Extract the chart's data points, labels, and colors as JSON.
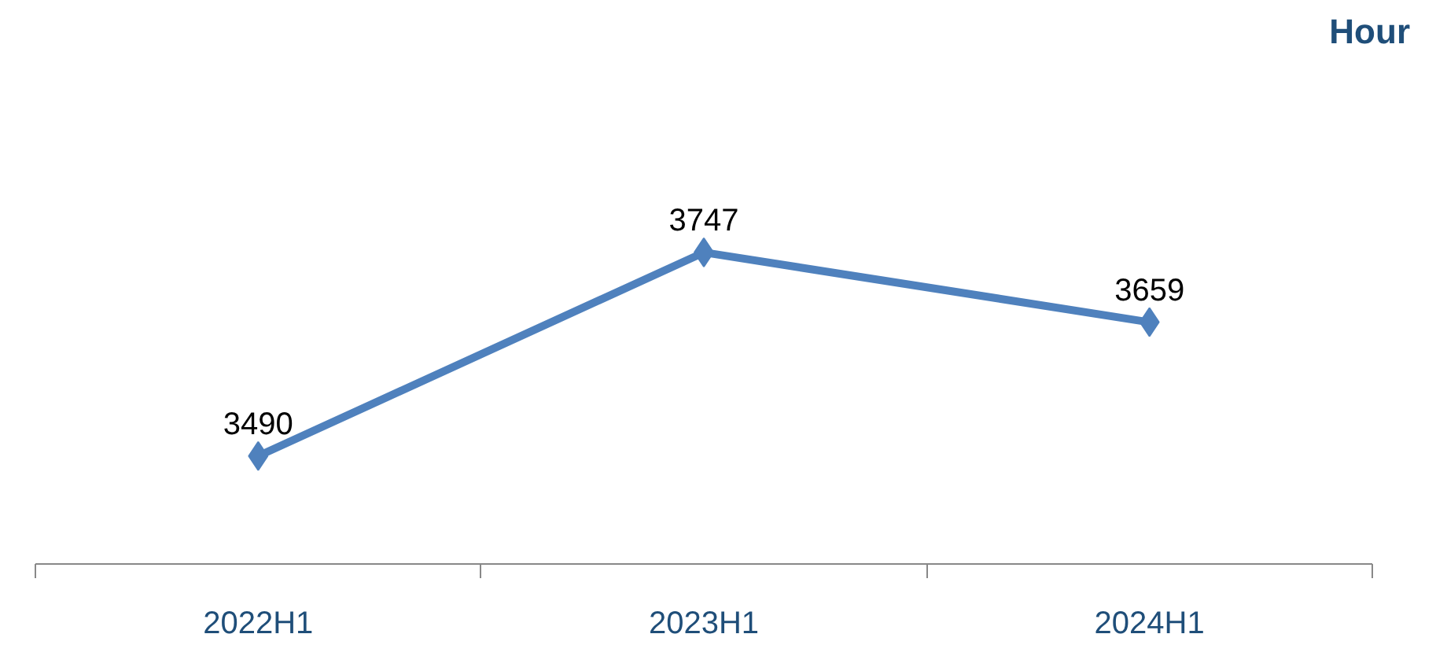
{
  "chart_data": {
    "type": "line",
    "annotations": [
      "Hour"
    ],
    "categories": [
      "2022H1",
      "2023H1",
      "2024H1"
    ],
    "series": [
      {
        "color": "#4f81bd",
        "values": [
          3490,
          3747,
          3659
        ]
      }
    ],
    "data_labels": true,
    "marker": "diamond",
    "line_style": "solid",
    "grid": false,
    "tick_labels": "x"
  }
}
